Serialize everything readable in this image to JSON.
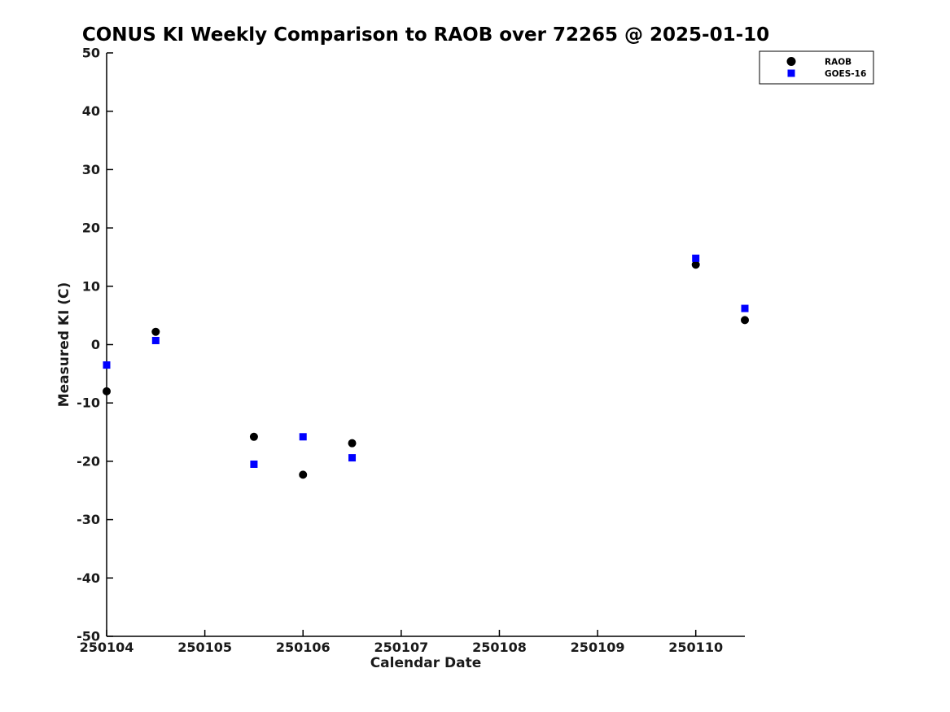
{
  "colors": {
    "background": "#ffffff",
    "axis": "#000000",
    "text": "#1a1a1a",
    "raob": "#000000",
    "goes16": "#0000ff"
  },
  "chart_data": {
    "type": "scatter",
    "title": "CONUS KI Weekly Comparison to RAOB over 72265 @ 2025-01-10",
    "xlabel": "Calendar Date",
    "ylabel": "Measured KI (C)",
    "xlim": [
      250104,
      250110.5
    ],
    "ylim": [
      -50,
      50
    ],
    "xticks": [
      250104,
      250105,
      250106,
      250107,
      250108,
      250109,
      250110
    ],
    "yticks": [
      -50,
      -40,
      -30,
      -20,
      -10,
      0,
      10,
      20,
      30,
      40,
      50
    ],
    "grid": false,
    "legend": {
      "position": "upper-right",
      "entries": [
        {
          "label": "RAOB",
          "marker": "circle",
          "color": "#000000"
        },
        {
          "label": "GOES-16",
          "marker": "square",
          "color": "#0000ff"
        }
      ]
    },
    "series": [
      {
        "name": "RAOB",
        "marker": "circle",
        "color": "#000000",
        "x": [
          250104,
          250104.5,
          250105.5,
          250106,
          250106.5,
          250110,
          250110.5
        ],
        "y": [
          -8,
          2.2,
          -15.8,
          -22.3,
          -16.9,
          13.7,
          4.2
        ]
      },
      {
        "name": "GOES-16",
        "marker": "square",
        "color": "#0000ff",
        "x": [
          250104,
          250104.5,
          250105.5,
          250106,
          250106.5,
          250110,
          250110.5
        ],
        "y": [
          -3.5,
          0.7,
          -20.5,
          -15.8,
          -19.4,
          14.8,
          6.2
        ]
      }
    ]
  }
}
